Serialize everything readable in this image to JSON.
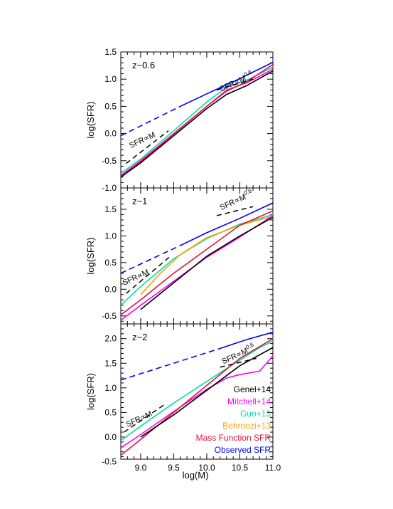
{
  "chart_data": {
    "type": "line",
    "xlabel": "log(M)",
    "ylabel": "log(SFR)",
    "xlim": [
      8.7,
      11.0
    ],
    "x_ticks": [
      "9.0",
      "9.5",
      "10.0",
      "10.5",
      "11.0"
    ],
    "legend": {
      "placement": "bottom-right of lower panel",
      "entries": [
        {
          "label": "Genel+14",
          "color": "#000000"
        },
        {
          "label": "Mitchell+14",
          "color": "#ff00ff"
        },
        {
          "label": "Guo+13",
          "color": "#00e0a0"
        },
        {
          "label": "Behroozi+13",
          "color": "#ffa000"
        },
        {
          "label": "Mass Function SFR",
          "color": "#e0143c"
        },
        {
          "label": "Observed SFR",
          "color": "#0000ff"
        }
      ]
    },
    "panels": [
      {
        "label": "z~0.6",
        "ylim": [
          -1.0,
          1.5
        ],
        "y_ticks": [
          "-1.0",
          "-0.5",
          "0.0",
          "0.5",
          "1.0",
          "1.5"
        ],
        "annotations": [
          {
            "text": "SFR∝M",
            "x": 8.85,
            "y": -0.27
          },
          {
            "text": "SFR∝M",
            "sup": "0.6",
            "x": 10.22,
            "y": 0.77
          }
        ],
        "ref_lines": [
          {
            "x": [
              8.78,
              9.42
            ],
            "y": [
              -0.55,
              0.05
            ]
          },
          {
            "x": [
              10.15,
              10.7
            ],
            "y": [
              0.8,
              1.0
            ]
          }
        ],
        "series": [
          {
            "name": "Observed SFR",
            "color": "#0000ff",
            "dashed": true,
            "x": [
              8.7,
              9.6
            ],
            "y": [
              -0.04,
              0.5
            ]
          },
          {
            "name": "Observed SFR",
            "color": "#0000ff",
            "dashed": false,
            "x": [
              9.6,
              10.0,
              10.5,
              11.0
            ],
            "y": [
              0.5,
              0.73,
              1.01,
              1.31
            ]
          },
          {
            "name": "Guo+13",
            "color": "#00e0a0",
            "dashed": false,
            "x": [
              8.7,
              9.0,
              9.5,
              10.0,
              10.3,
              10.6,
              11.0
            ],
            "y": [
              -0.73,
              -0.47,
              0.05,
              0.58,
              0.85,
              0.98,
              1.22
            ]
          },
          {
            "name": "Mitchell+14",
            "color": "#ff00ff",
            "dashed": false,
            "x": [
              8.7,
              9.0,
              9.5,
              10.0,
              10.3,
              10.6,
              11.0
            ],
            "y": [
              -0.77,
              -0.5,
              0.0,
              0.5,
              0.8,
              0.93,
              1.18
            ]
          },
          {
            "name": "Mass Function SFR",
            "color": "#e0143c",
            "dashed": false,
            "x": [
              8.7,
              9.0,
              9.5,
              10.0,
              10.3,
              10.6,
              11.0
            ],
            "y": [
              -0.79,
              -0.52,
              -0.01,
              0.5,
              0.78,
              0.95,
              1.27
            ]
          },
          {
            "name": "Genel+14",
            "color": "#000000",
            "dashed": false,
            "x": [
              8.7,
              9.0,
              9.5,
              10.0,
              10.3,
              10.6,
              11.0
            ],
            "y": [
              -0.8,
              -0.54,
              -0.04,
              0.46,
              0.72,
              0.88,
              1.15
            ]
          }
        ]
      },
      {
        "label": "z~1",
        "ylim": [
          -0.65,
          1.9
        ],
        "y_ticks": [
          "-0.5",
          "0.0",
          "0.5",
          "1.0",
          "1.5"
        ],
        "annotations": [
          {
            "text": "SFR∝M",
            "x": 8.75,
            "y": 0.07
          },
          {
            "text": "SFR∝M",
            "sup": "0.6",
            "x": 10.22,
            "y": 1.48
          }
        ],
        "ref_lines": [
          {
            "x": [
              8.78,
              9.45
            ],
            "y": [
              -0.08,
              0.62
            ]
          },
          {
            "x": [
              10.15,
              10.7
            ],
            "y": [
              1.38,
              1.55
            ]
          }
        ],
        "series": [
          {
            "name": "Observed SFR",
            "color": "#0000ff",
            "dashed": true,
            "x": [
              8.7,
              9.6
            ],
            "y": [
              0.3,
              0.82
            ]
          },
          {
            "name": "Observed SFR",
            "color": "#0000ff",
            "dashed": false,
            "x": [
              9.6,
              10.0,
              10.5,
              11.0
            ],
            "y": [
              0.82,
              1.06,
              1.33,
              1.62
            ]
          },
          {
            "name": "Guo+13",
            "color": "#00e0a0",
            "dashed": false,
            "x": [
              8.7,
              9.0,
              9.5,
              9.8,
              10.0,
              10.5,
              11.0
            ],
            "y": [
              -0.3,
              0.05,
              0.57,
              0.8,
              0.95,
              1.22,
              1.4
            ]
          },
          {
            "name": "Behroozi+13",
            "color": "#ffa000",
            "dashed": false,
            "x": [
              9.0,
              9.3,
              9.6,
              10.0,
              10.5,
              10.8,
              11.0
            ],
            "y": [
              -0.1,
              0.3,
              0.65,
              0.97,
              1.2,
              1.3,
              1.37
            ]
          },
          {
            "name": "Mitchell+14",
            "color": "#ff00ff",
            "dashed": false,
            "x": [
              8.7,
              9.0,
              9.5,
              10.0,
              10.5,
              11.0
            ],
            "y": [
              -0.58,
              -0.3,
              0.15,
              0.6,
              0.98,
              1.38
            ]
          },
          {
            "name": "Mass Function SFR",
            "color": "#e0143c",
            "dashed": false,
            "x": [
              8.7,
              9.0,
              9.5,
              10.0,
              10.5,
              11.0
            ],
            "y": [
              -0.48,
              -0.2,
              0.3,
              0.75,
              1.2,
              1.47
            ]
          },
          {
            "name": "Genel+14",
            "color": "#000000",
            "dashed": false,
            "x": [
              9.0,
              9.5,
              10.0,
              10.5,
              11.0
            ],
            "y": [
              -0.38,
              0.12,
              0.62,
              1.0,
              1.35
            ]
          }
        ]
      },
      {
        "label": "z~2",
        "ylim": [
          -0.45,
          2.3
        ],
        "y_ticks": [
          "-0.5",
          "0.0",
          "0.5",
          "1.0",
          "1.5",
          "2.0"
        ],
        "annotations": [
          {
            "text": "SFR∝M",
            "x": 8.8,
            "y": 0.2
          },
          {
            "text": "SFR∝M",
            "sup": "0.6",
            "x": 10.25,
            "y": 1.48
          }
        ],
        "ref_lines": [
          {
            "x": [
              8.75,
              9.35
            ],
            "y": [
              0.1,
              0.65
            ]
          },
          {
            "x": [
              10.2,
              10.75
            ],
            "y": [
              1.42,
              1.6
            ]
          }
        ],
        "series": [
          {
            "name": "Observed SFR",
            "color": "#0000ff",
            "dashed": true,
            "x": [
              8.7,
              10.2
            ],
            "y": [
              1.16,
              1.8
            ]
          },
          {
            "name": "Observed SFR",
            "color": "#0000ff",
            "dashed": false,
            "x": [
              10.2,
              10.6,
              11.0
            ],
            "y": [
              1.8,
              1.98,
              2.13
            ]
          },
          {
            "name": "Guo+13",
            "color": "#00e0a0",
            "dashed": false,
            "x": [
              8.7,
              9.0,
              9.5,
              10.0,
              10.4,
              10.8,
              11.0
            ],
            "y": [
              -0.07,
              0.22,
              0.69,
              1.13,
              1.48,
              1.82,
              1.95
            ]
          },
          {
            "name": "Mitchell+14",
            "color": "#ff00ff",
            "dashed": false,
            "x": [
              8.7,
              9.0,
              9.5,
              10.0,
              10.3,
              10.5,
              10.8,
              11.0
            ],
            "y": [
              -0.22,
              0.05,
              0.52,
              0.97,
              1.2,
              1.27,
              1.34,
              1.65
            ]
          },
          {
            "name": "Mass Function SFR",
            "color": "#e0143c",
            "dashed": false,
            "x": [
              8.7,
              9.0,
              9.5,
              10.0,
              10.5,
              11.0
            ],
            "y": [
              -0.37,
              -0.05,
              0.5,
              1.05,
              1.6,
              2.0
            ]
          },
          {
            "name": "Genel+14",
            "color": "#000000",
            "dashed": false,
            "x": [
              9.0,
              9.5,
              10.0,
              10.5,
              11.0
            ],
            "y": [
              0.0,
              0.45,
              0.95,
              1.45,
              1.82
            ]
          }
        ]
      }
    ]
  }
}
